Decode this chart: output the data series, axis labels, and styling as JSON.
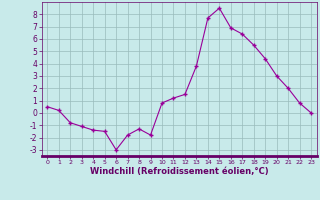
{
  "x": [
    0,
    1,
    2,
    3,
    4,
    5,
    6,
    7,
    8,
    9,
    10,
    11,
    12,
    13,
    14,
    15,
    16,
    17,
    18,
    19,
    20,
    21,
    22,
    23
  ],
  "y": [
    0.5,
    0.2,
    -0.8,
    -1.1,
    -1.4,
    -1.5,
    -3.0,
    -1.8,
    -1.3,
    -1.8,
    0.8,
    1.2,
    1.5,
    3.8,
    7.7,
    8.5,
    6.9,
    6.4,
    5.5,
    4.4,
    3.0,
    2.0,
    0.8,
    0.0
  ],
  "line_color": "#990099",
  "marker": "+",
  "marker_size": 4,
  "bg_color": "#c8eaea",
  "grid_color": "#99bbbb",
  "spine_color": "#660066",
  "tick_color": "#660066",
  "xlabel": "Windchill (Refroidissement éolien,°C)",
  "xlabel_color": "#660066",
  "ylim": [
    -3.5,
    9.0
  ],
  "xlim": [
    -0.5,
    23.5
  ],
  "yticks": [
    -3,
    -2,
    -1,
    0,
    1,
    2,
    3,
    4,
    5,
    6,
    7,
    8
  ],
  "xticks": [
    0,
    1,
    2,
    3,
    4,
    5,
    6,
    7,
    8,
    9,
    10,
    11,
    12,
    13,
    14,
    15,
    16,
    17,
    18,
    19,
    20,
    21,
    22,
    23
  ]
}
